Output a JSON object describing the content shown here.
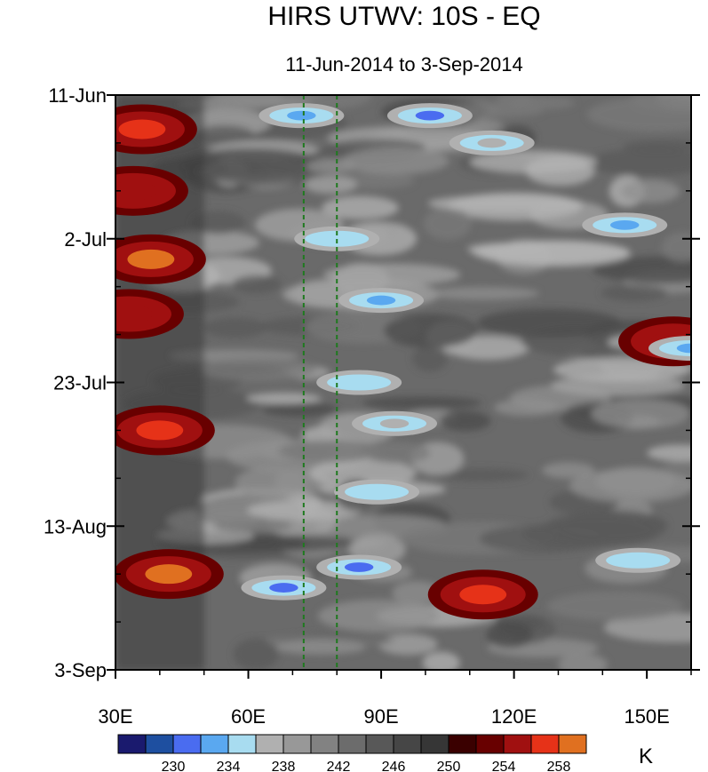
{
  "chart_data": {
    "type": "heatmap",
    "title": "HIRS UTWV: 10S - EQ",
    "subtitle": "11-Jun-2014 to 3-Sep-2014",
    "xlabel": "",
    "ylabel": "",
    "x_range": [
      30,
      160
    ],
    "x_unit": "degrees East longitude",
    "y_range_days": [
      0,
      84
    ],
    "y_unit": "days since 11-Jun-2014",
    "x_ticks": [
      {
        "value": 30,
        "label": "30E"
      },
      {
        "value": 60,
        "label": "60E"
      },
      {
        "value": 90,
        "label": "90E"
      },
      {
        "value": 120,
        "label": "120E"
      },
      {
        "value": 150,
        "label": "150E"
      }
    ],
    "y_ticks": [
      {
        "day": 0,
        "label": "11-Jun"
      },
      {
        "day": 21,
        "label": "2-Jul"
      },
      {
        "day": 42,
        "label": "23-Jul"
      },
      {
        "day": 63,
        "label": "13-Aug"
      },
      {
        "day": 84,
        "label": "3-Sep"
      }
    ],
    "reference_lines": [
      {
        "x": 72.5,
        "color": "#1f7a1f",
        "style": "dashed"
      },
      {
        "x": 80,
        "color": "#1f7a1f",
        "style": "dashed"
      }
    ],
    "colorbar": {
      "units": "K",
      "levels": [
        228,
        230,
        232,
        234,
        236,
        238,
        240,
        242,
        244,
        246,
        248,
        250,
        252,
        254,
        256,
        258
      ],
      "labeled_levels": [
        230,
        234,
        238,
        242,
        246,
        250,
        254,
        258
      ],
      "colors": [
        "#1a1a6e",
        "#1e4fa0",
        "#4a6cf0",
        "#5aa8f0",
        "#a8dcf0",
        "#b0b0b0",
        "#989898",
        "#828282",
        "#6c6c6c",
        "#585858",
        "#464646",
        "#363636",
        "#3a0000",
        "#680000",
        "#a01010",
        "#e63218",
        "#e07020"
      ]
    },
    "features": [
      {
        "lon": 36,
        "day": 5,
        "value": 257
      },
      {
        "lon": 34,
        "day": 14,
        "value": 255
      },
      {
        "lon": 38,
        "day": 24,
        "value": 258
      },
      {
        "lon": 33,
        "day": 32,
        "value": 255
      },
      {
        "lon": 40,
        "day": 49,
        "value": 257
      },
      {
        "lon": 42,
        "day": 70,
        "value": 258
      },
      {
        "lon": 113,
        "day": 73,
        "value": 256
      },
      {
        "lon": 156,
        "day": 36,
        "value": 254
      },
      {
        "lon": 72,
        "day": 3,
        "value": 233
      },
      {
        "lon": 101,
        "day": 3,
        "value": 230
      },
      {
        "lon": 115,
        "day": 7,
        "value": 236
      },
      {
        "lon": 145,
        "day": 19,
        "value": 232
      },
      {
        "lon": 80,
        "day": 21,
        "value": 234
      },
      {
        "lon": 90,
        "day": 30,
        "value": 232
      },
      {
        "lon": 160,
        "day": 37,
        "value": 233
      },
      {
        "lon": 85,
        "day": 42,
        "value": 234
      },
      {
        "lon": 93,
        "day": 48,
        "value": 236
      },
      {
        "lon": 89,
        "day": 58,
        "value": 235
      },
      {
        "lon": 85,
        "day": 69,
        "value": 231
      },
      {
        "lon": 68,
        "day": 72,
        "value": 230
      },
      {
        "lon": 148,
        "day": 68,
        "value": 234
      }
    ]
  }
}
